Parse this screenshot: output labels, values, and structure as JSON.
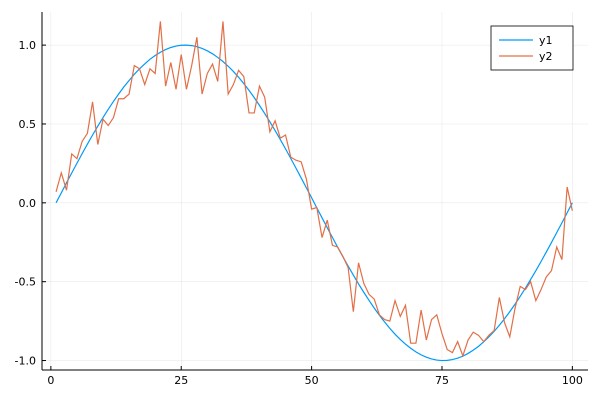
{
  "chart_data": {
    "type": "line",
    "x": [
      1,
      2,
      3,
      4,
      5,
      6,
      7,
      8,
      9,
      10,
      11,
      12,
      13,
      14,
      15,
      16,
      17,
      18,
      19,
      20,
      21,
      22,
      23,
      24,
      25,
      26,
      27,
      28,
      29,
      30,
      31,
      32,
      33,
      34,
      35,
      36,
      37,
      38,
      39,
      40,
      41,
      42,
      43,
      44,
      45,
      46,
      47,
      48,
      49,
      50,
      51,
      52,
      53,
      54,
      55,
      56,
      57,
      58,
      59,
      60,
      61,
      62,
      63,
      64,
      65,
      66,
      67,
      68,
      69,
      70,
      71,
      72,
      73,
      74,
      75,
      76,
      77,
      78,
      79,
      80,
      81,
      82,
      83,
      84,
      85,
      86,
      87,
      88,
      89,
      90,
      91,
      92,
      93,
      94,
      95,
      96,
      97,
      98,
      99,
      100
    ],
    "series": [
      {
        "name": "y1",
        "color": "#009af9",
        "values": [
          0,
          0.063,
          0.127,
          0.189,
          0.251,
          0.312,
          0.372,
          0.43,
          0.486,
          0.541,
          0.593,
          0.643,
          0.69,
          0.735,
          0.776,
          0.815,
          0.85,
          0.881,
          0.91,
          0.934,
          0.955,
          0.972,
          0.985,
          0.994,
          0.999,
          1.0,
          0.997,
          0.99,
          0.979,
          0.964,
          0.945,
          0.922,
          0.896,
          0.866,
          0.833,
          0.796,
          0.756,
          0.713,
          0.667,
          0.618,
          0.567,
          0.514,
          0.458,
          0.401,
          0.342,
          0.282,
          0.22,
          0.158,
          0.095,
          0.032,
          -0.032,
          -0.095,
          -0.158,
          -0.22,
          -0.282,
          -0.342,
          -0.401,
          -0.458,
          -0.514,
          -0.567,
          -0.618,
          -0.667,
          -0.713,
          -0.756,
          -0.796,
          -0.833,
          -0.866,
          -0.896,
          -0.922,
          -0.945,
          -0.964,
          -0.979,
          -0.99,
          -0.997,
          -1.0,
          -0.999,
          -0.994,
          -0.985,
          -0.972,
          -0.955,
          -0.934,
          -0.91,
          -0.881,
          -0.85,
          -0.815,
          -0.776,
          -0.735,
          -0.69,
          -0.643,
          -0.593,
          -0.541,
          -0.486,
          -0.43,
          -0.372,
          -0.312,
          -0.251,
          -0.189,
          -0.127,
          -0.063,
          0
        ]
      },
      {
        "name": "y2",
        "color": "#e26f46",
        "values": [
          0.07,
          0.19,
          0.08,
          0.31,
          0.28,
          0.39,
          0.44,
          0.64,
          0.37,
          0.53,
          0.49,
          0.54,
          0.66,
          0.66,
          0.69,
          0.87,
          0.85,
          0.75,
          0.85,
          0.82,
          1.15,
          0.74,
          0.89,
          0.72,
          0.94,
          0.72,
          0.87,
          1.05,
          0.69,
          0.82,
          0.88,
          0.77,
          1.15,
          0.69,
          0.75,
          0.84,
          0.8,
          0.57,
          0.57,
          0.74,
          0.67,
          0.45,
          0.52,
          0.41,
          0.43,
          0.29,
          0.27,
          0.26,
          0.15,
          -0.04,
          -0.03,
          -0.22,
          -0.11,
          -0.27,
          -0.28,
          -0.34,
          -0.41,
          -0.69,
          -0.38,
          -0.51,
          -0.58,
          -0.61,
          -0.71,
          -0.74,
          -0.75,
          -0.62,
          -0.72,
          -0.65,
          -0.89,
          -0.89,
          -0.68,
          -0.87,
          -0.74,
          -0.71,
          -0.83,
          -0.93,
          -0.95,
          -0.88,
          -0.97,
          -0.87,
          -0.82,
          -0.84,
          -0.88,
          -0.84,
          -0.81,
          -0.6,
          -0.76,
          -0.85,
          -0.67,
          -0.53,
          -0.55,
          -0.5,
          -0.62,
          -0.55,
          -0.47,
          -0.43,
          -0.28,
          -0.36,
          0.1,
          -0.05
        ]
      }
    ],
    "xlim": [
      -1.7,
      103
    ],
    "ylim": [
      -1.06,
      1.21
    ],
    "xticks": [
      0,
      25,
      50,
      75,
      100
    ],
    "yticks": [
      {
        "value": -1,
        "label": "-1.0"
      },
      {
        "value": -0.5,
        "label": "-0.5"
      },
      {
        "value": 0,
        "label": "0.0"
      },
      {
        "value": 0.5,
        "label": "0.5"
      },
      {
        "value": 1,
        "label": "1.0"
      }
    ],
    "grid": true,
    "legend": "top-right"
  }
}
